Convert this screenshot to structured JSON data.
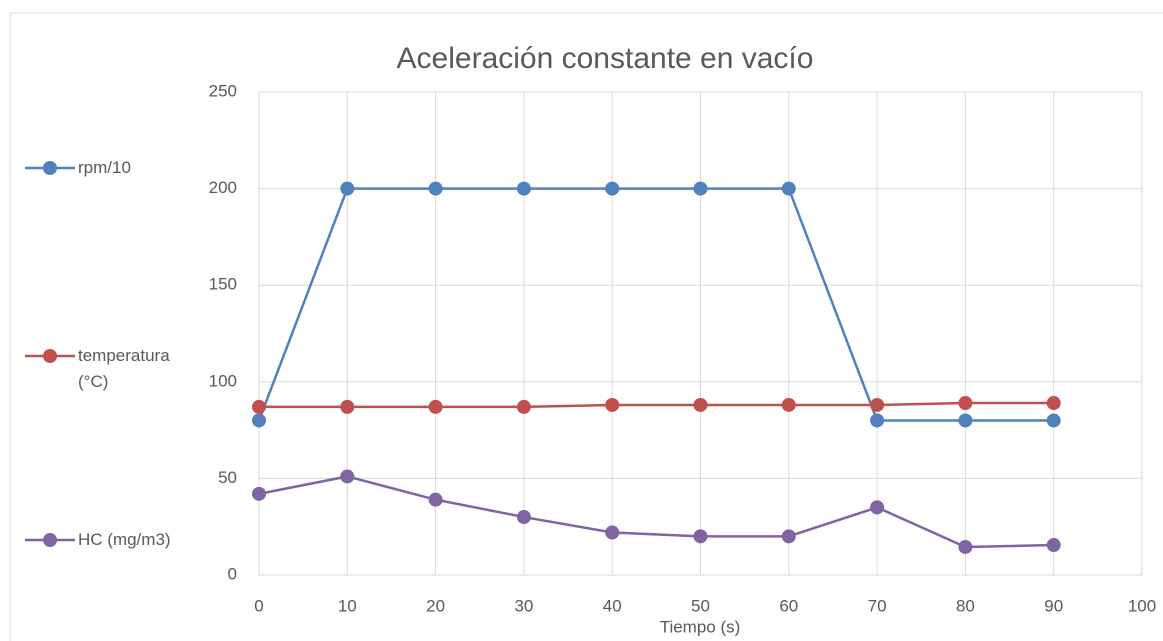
{
  "chart_data": {
    "type": "line",
    "title": "Aceleración constante en vacío",
    "x_label": "Tiempo (s)",
    "x": [
      0,
      10,
      20,
      30,
      40,
      50,
      60,
      70,
      80,
      90
    ],
    "series": [
      {
        "name": "rpm/10",
        "color": "#4f81bd",
        "values": [
          80,
          200,
          200,
          200,
          200,
          200,
          200,
          80,
          80,
          80
        ]
      },
      {
        "name": "temperatura (°C)",
        "color": "#c0504d",
        "values": [
          87,
          87,
          87,
          87,
          88,
          88,
          88,
          88,
          89,
          89
        ]
      },
      {
        "name": "HC (mg/m3)",
        "color": "#8064a2",
        "values": [
          42,
          51,
          39,
          30,
          22,
          20,
          20,
          35,
          14.5,
          15.5
        ]
      }
    ],
    "xlim": [
      0,
      100
    ],
    "xticks": [
      0,
      10,
      20,
      30,
      40,
      50,
      60,
      70,
      80,
      90,
      100
    ],
    "ylim": [
      0,
      250
    ],
    "yticks": [
      0,
      50,
      100,
      150,
      200,
      250
    ],
    "grid": true,
    "legend": "left"
  }
}
